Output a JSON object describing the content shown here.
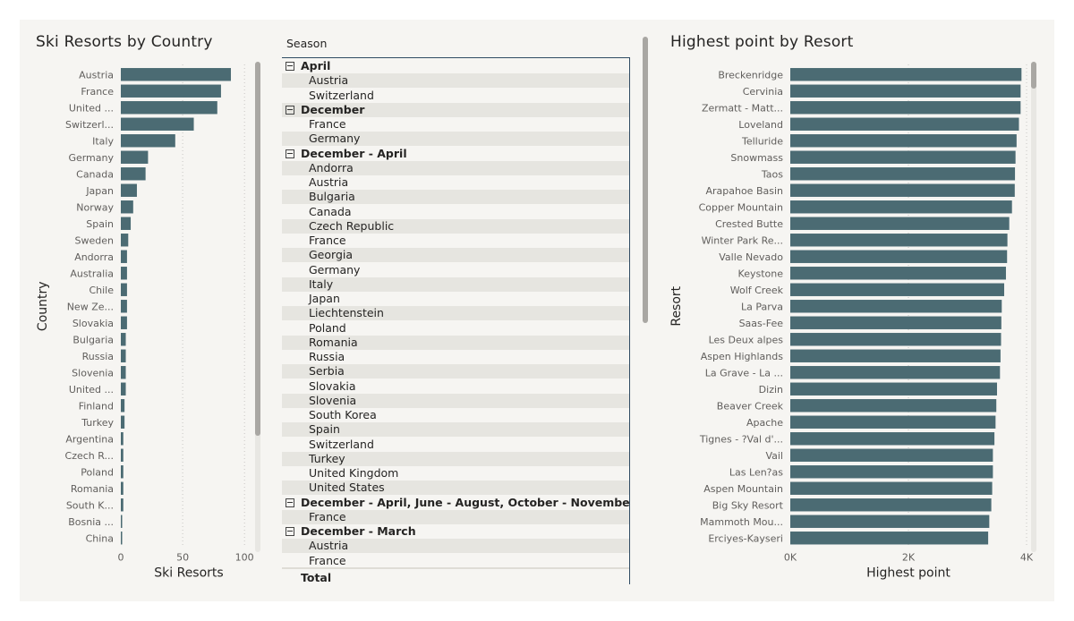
{
  "colors": {
    "bar": "#4b6b73",
    "panel": "#f6f5f2",
    "band": "#e6e5e0",
    "text": "#252423",
    "axis": "#605e5c"
  },
  "country_chart": {
    "title": "Ski Resorts by Country"
  },
  "matrix": {
    "column_header": "Season",
    "rows": [
      {
        "label": "April",
        "level": 0
      },
      {
        "label": "Austria",
        "level": 1
      },
      {
        "label": "Switzerland",
        "level": 1
      },
      {
        "label": "December",
        "level": 0
      },
      {
        "label": "France",
        "level": 1
      },
      {
        "label": "Germany",
        "level": 1
      },
      {
        "label": "December - April",
        "level": 0
      },
      {
        "label": "Andorra",
        "level": 1
      },
      {
        "label": "Austria",
        "level": 1
      },
      {
        "label": "Bulgaria",
        "level": 1
      },
      {
        "label": "Canada",
        "level": 1
      },
      {
        "label": "Czech Republic",
        "level": 1
      },
      {
        "label": "France",
        "level": 1
      },
      {
        "label": "Georgia",
        "level": 1
      },
      {
        "label": "Germany",
        "level": 1
      },
      {
        "label": "Italy",
        "level": 1
      },
      {
        "label": "Japan",
        "level": 1
      },
      {
        "label": "Liechtenstein",
        "level": 1
      },
      {
        "label": "Poland",
        "level": 1
      },
      {
        "label": "Romania",
        "level": 1
      },
      {
        "label": "Russia",
        "level": 1
      },
      {
        "label": "Serbia",
        "level": 1
      },
      {
        "label": "Slovakia",
        "level": 1
      },
      {
        "label": "Slovenia",
        "level": 1
      },
      {
        "label": "South Korea",
        "level": 1
      },
      {
        "label": "Spain",
        "level": 1
      },
      {
        "label": "Switzerland",
        "level": 1
      },
      {
        "label": "Turkey",
        "level": 1
      },
      {
        "label": "United Kingdom",
        "level": 1
      },
      {
        "label": "United States",
        "level": 1
      },
      {
        "label": "December - April, June - August, October - November",
        "level": 0
      },
      {
        "label": "France",
        "level": 1
      },
      {
        "label": "December - March",
        "level": 0
      },
      {
        "label": "Austria",
        "level": 1
      },
      {
        "label": "France",
        "level": 1
      }
    ],
    "total_label": "Total"
  },
  "resort_chart": {
    "title": "Highest point by Resort"
  },
  "chart_data": [
    {
      "type": "bar",
      "orientation": "horizontal",
      "title": "Ski Resorts by Country",
      "xlabel": "Ski Resorts",
      "ylabel": "Country",
      "xlim": [
        0,
        110
      ],
      "xticks": [
        "0",
        "50",
        "100"
      ],
      "xtick_values": [
        0,
        50,
        100
      ],
      "grid": true,
      "categories": [
        "Austria",
        "France",
        "United ...",
        "Switzerl...",
        "Italy",
        "Germany",
        "Canada",
        "Japan",
        "Norway",
        "Spain",
        "Sweden",
        "Andorra",
        "Australia",
        "Chile",
        "New Ze...",
        "Slovakia",
        "Bulgaria",
        "Russia",
        "Slovenia",
        "United ...",
        "Finland",
        "Turkey",
        "Argentina",
        "Czech R...",
        "Poland",
        "Romania",
        "South K...",
        "Bosnia ...",
        "China"
      ],
      "values": [
        89,
        81,
        78,
        59,
        44,
        22,
        20,
        13,
        10,
        8,
        6,
        5,
        5,
        5,
        5,
        5,
        4,
        4,
        4,
        4,
        3,
        3,
        2,
        2,
        2,
        2,
        2,
        1,
        1
      ]
    },
    {
      "type": "bar",
      "orientation": "horizontal",
      "title": "Highest point by Resort",
      "xlabel": "Highest point",
      "ylabel": "Resort",
      "xlim": [
        0,
        4000
      ],
      "xticks": [
        "0K",
        "2K",
        "4K"
      ],
      "xtick_values": [
        0,
        2000,
        4000
      ],
      "grid": true,
      "categories": [
        "Breckenridge",
        "Cervinia",
        "Zermatt - Matt...",
        "Loveland",
        "Telluride",
        "Snowmass",
        "Taos",
        "Arapahoe Basin",
        "Copper Mountain",
        "Crested Butte",
        "Winter Park Re...",
        "Valle Nevado",
        "Keystone",
        "Wolf Creek",
        "La Parva",
        "Saas-Fee",
        "Les Deux alpes",
        "Aspen Highlands",
        "La Grave - La ...",
        "Dizin",
        "Beaver Creek",
        "Apache",
        "Tignes - ?Val d'...",
        "Vail",
        "Las Len?as",
        "Aspen Mountain",
        "Big Sky Resort",
        "Mammoth Mou...",
        "Erciyes-Kayseri"
      ],
      "values": [
        3914,
        3899,
        3899,
        3871,
        3831,
        3813,
        3804,
        3800,
        3753,
        3707,
        3676,
        3670,
        3651,
        3621,
        3580,
        3573,
        3568,
        3559,
        3550,
        3500,
        3488,
        3475,
        3456,
        3430,
        3430,
        3418,
        3403,
        3369,
        3350
      ]
    }
  ]
}
